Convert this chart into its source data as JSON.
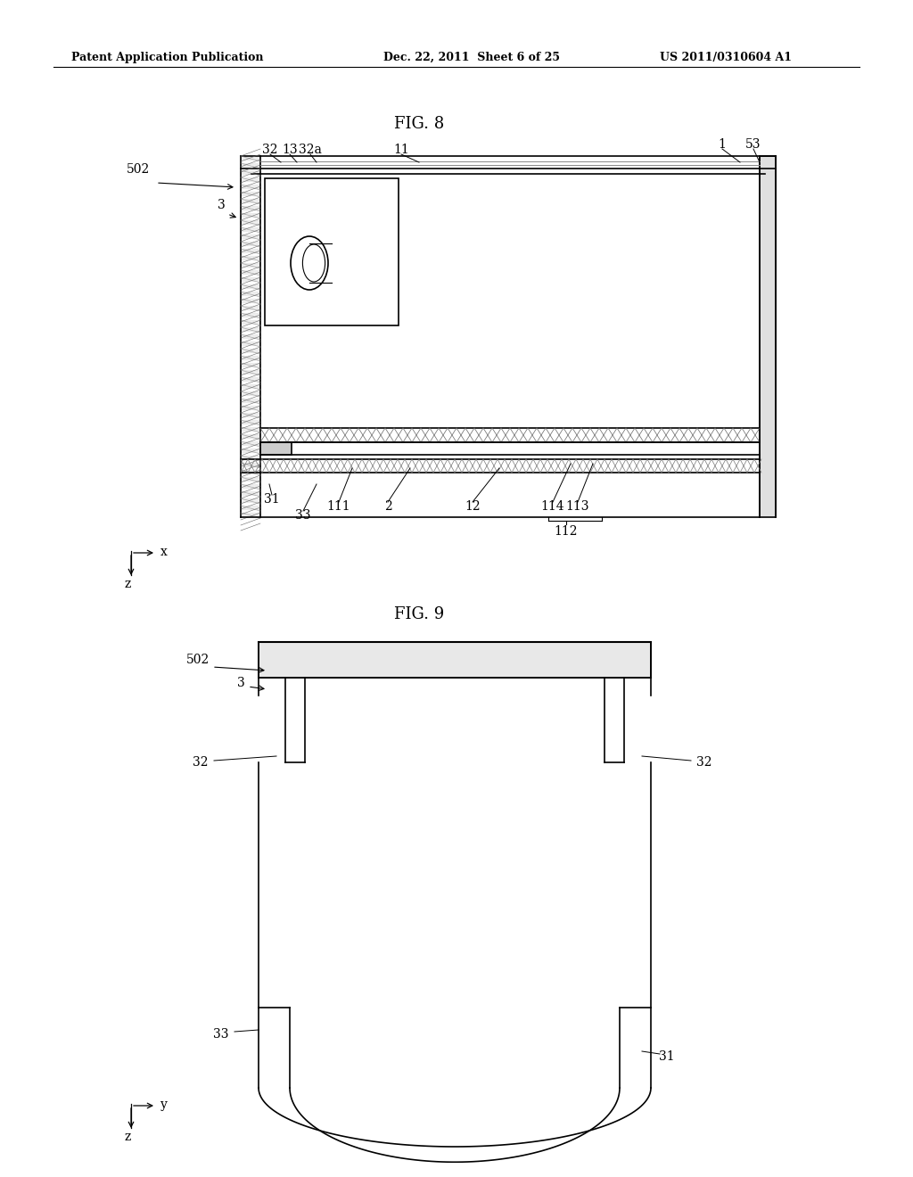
{
  "bg_color": "#ffffff",
  "header_left": "Patent Application Publication",
  "header_mid": "Dec. 22, 2011  Sheet 6 of 25",
  "header_right": "US 2011/0310604 A1",
  "fig8_title": "FIG. 8",
  "fig9_title": "FIG. 9",
  "line_color": "#000000",
  "hatch_color": "#555555",
  "light_gray": "#cccccc",
  "dark_line": "#111111"
}
